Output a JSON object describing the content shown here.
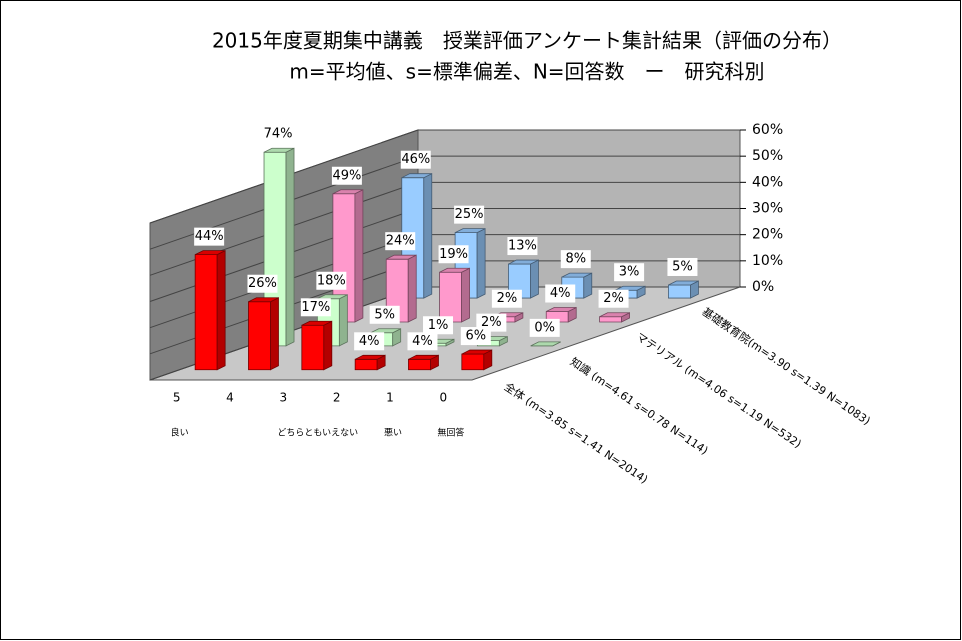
{
  "chart_data": {
    "type": "bar3d",
    "title": "2015年度夏期集中講義　授業評価アンケート集計結果（評価の分布）",
    "subtitle": "m=平均値、s=標準偏差、N=回答数　ー　研究科別",
    "categories": [
      "5",
      "4",
      "3",
      "2",
      "1",
      "0"
    ],
    "category_notes": [
      "良い",
      null,
      "どちらともいえない",
      null,
      "悪い",
      "無回答"
    ],
    "series": [
      {
        "name": "全体 (m=3.85 s=1.41 N=2014)",
        "color": "#ff0000",
        "values": [
          44,
          26,
          17,
          4,
          4,
          6
        ],
        "value_labels": [
          "44%",
          "26%",
          "17%",
          "4%",
          "4%",
          "6%"
        ]
      },
      {
        "name": "知識 (m=4.61 s=0.78 N=114)",
        "color": "#ccffcc",
        "values": [
          74,
          18,
          5,
          1,
          2,
          0
        ],
        "value_labels": [
          "74%",
          "18%",
          "5%",
          "1%",
          "2%",
          "0%"
        ]
      },
      {
        "name": "マテリアル (m=4.06 s=1.19 N=532)",
        "color": "#ff99cc",
        "values": [
          49,
          24,
          19,
          2,
          4,
          2
        ],
        "value_labels": [
          "49%",
          "24%",
          "19%",
          "2%",
          "4%",
          "2%"
        ]
      },
      {
        "name": "基礎教育院(m=3.90 s=1.39 N=1083)",
        "color": "#99ccff",
        "values": [
          46,
          25,
          13,
          8,
          3,
          5
        ],
        "value_labels": [
          "46%",
          "25%",
          "13%",
          "8%",
          "3%",
          "5%"
        ]
      }
    ],
    "ylim": [
      0,
      60
    ],
    "yticks": [
      {
        "value": 0,
        "label": "0%"
      },
      {
        "value": 10,
        "label": "10%"
      },
      {
        "value": 20,
        "label": "20%"
      },
      {
        "value": 30,
        "label": "30%"
      },
      {
        "value": 40,
        "label": "40%"
      },
      {
        "value": 50,
        "label": "50%"
      },
      {
        "value": 60,
        "label": "60%"
      }
    ],
    "grid": true
  }
}
